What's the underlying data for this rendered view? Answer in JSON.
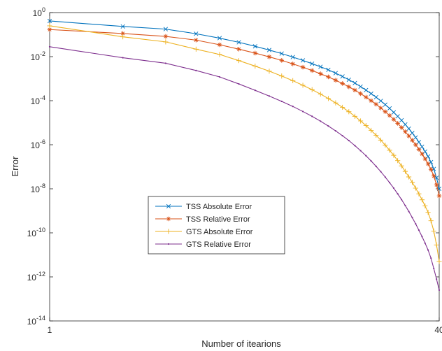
{
  "chart_data": {
    "type": "line",
    "title": "",
    "xlabel": "Number of itearions",
    "ylabel": "Error",
    "xscale": "log",
    "yscale": "log",
    "xlim": [
      1,
      40
    ],
    "ylim": [
      1e-14,
      1
    ],
    "x_ticks": [
      1,
      40
    ],
    "x_tick_labels": [
      "1",
      "40"
    ],
    "y_ticks": [
      1,
      0.01,
      0.0001,
      1e-06,
      1e-08,
      1e-10,
      1e-12,
      1e-14
    ],
    "y_tick_labels": [
      {
        "base": "10",
        "exp": "0"
      },
      {
        "base": "10",
        "exp": "-2"
      },
      {
        "base": "10",
        "exp": "-4"
      },
      {
        "base": "10",
        "exp": "-6"
      },
      {
        "base": "10",
        "exp": "-8"
      },
      {
        "base": "10",
        "exp": "-10"
      },
      {
        "base": "10",
        "exp": "-12"
      },
      {
        "base": "10",
        "exp": "-14"
      }
    ],
    "grid": false,
    "legend_position": "lower-center",
    "x": [
      1,
      2,
      3,
      4,
      5,
      6,
      7,
      8,
      9,
      10,
      11,
      12,
      13,
      14,
      15,
      16,
      17,
      18,
      19,
      20,
      21,
      22,
      23,
      24,
      25,
      26,
      27,
      28,
      29,
      30,
      31,
      32,
      33,
      34,
      35,
      36,
      37,
      38,
      39,
      40
    ],
    "series": [
      {
        "name": "TSS Absolute Error",
        "color": "#0072BD",
        "marker": "x",
        "log10_values": [
          -0.38,
          -0.63,
          -0.75,
          -0.96,
          -1.16,
          -1.35,
          -1.53,
          -1.7,
          -1.86,
          -2.02,
          -2.17,
          -2.32,
          -2.46,
          -2.6,
          -2.75,
          -2.9,
          -3.05,
          -3.2,
          -3.36,
          -3.52,
          -3.68,
          -3.84,
          -4.01,
          -4.18,
          -4.35,
          -4.53,
          -4.71,
          -4.89,
          -5.08,
          -5.27,
          -5.47,
          -5.67,
          -5.88,
          -6.09,
          -6.31,
          -6.53,
          -6.79,
          -7.1,
          -7.5,
          -8.0
        ]
      },
      {
        "name": "TSS Relative Error",
        "color": "#D95319",
        "marker": "*",
        "log10_values": [
          -0.77,
          -0.95,
          -1.08,
          -1.25,
          -1.46,
          -1.66,
          -1.84,
          -2.01,
          -2.17,
          -2.33,
          -2.48,
          -2.63,
          -2.78,
          -2.92,
          -3.07,
          -3.22,
          -3.37,
          -3.52,
          -3.68,
          -3.84,
          -4.0,
          -4.16,
          -4.33,
          -4.5,
          -4.67,
          -4.85,
          -5.03,
          -5.22,
          -5.41,
          -5.6,
          -5.8,
          -6.0,
          -6.21,
          -6.42,
          -6.64,
          -6.87,
          -7.12,
          -7.42,
          -7.82,
          -8.32
        ]
      },
      {
        "name": "GTS Absolute Error",
        "color": "#EDB120",
        "marker": "+",
        "log10_values": [
          -0.6,
          -1.1,
          -1.33,
          -1.66,
          -1.9,
          -2.18,
          -2.43,
          -2.66,
          -2.88,
          -3.09,
          -3.3,
          -3.5,
          -3.7,
          -3.9,
          -4.1,
          -4.3,
          -4.5,
          -4.71,
          -4.92,
          -5.13,
          -5.35,
          -5.57,
          -5.79,
          -6.02,
          -6.25,
          -6.48,
          -6.72,
          -6.96,
          -7.21,
          -7.46,
          -7.71,
          -7.97,
          -8.23,
          -8.5,
          -8.78,
          -9.07,
          -9.45,
          -9.92,
          -10.55,
          -11.3
        ]
      },
      {
        "name": "GTS Relative Error",
        "color": "#7E2F8E",
        "marker": "none",
        "log10_values": [
          -1.55,
          -2.05,
          -2.3,
          -2.63,
          -2.92,
          -3.24,
          -3.53,
          -3.79,
          -4.03,
          -4.26,
          -4.49,
          -4.71,
          -4.93,
          -5.15,
          -5.37,
          -5.59,
          -5.81,
          -6.04,
          -6.27,
          -6.5,
          -6.74,
          -6.98,
          -7.22,
          -7.47,
          -7.72,
          -7.97,
          -8.23,
          -8.49,
          -8.76,
          -9.03,
          -9.31,
          -9.59,
          -9.88,
          -10.17,
          -10.47,
          -10.78,
          -11.15,
          -11.62,
          -12.1,
          -12.6
        ]
      }
    ]
  }
}
